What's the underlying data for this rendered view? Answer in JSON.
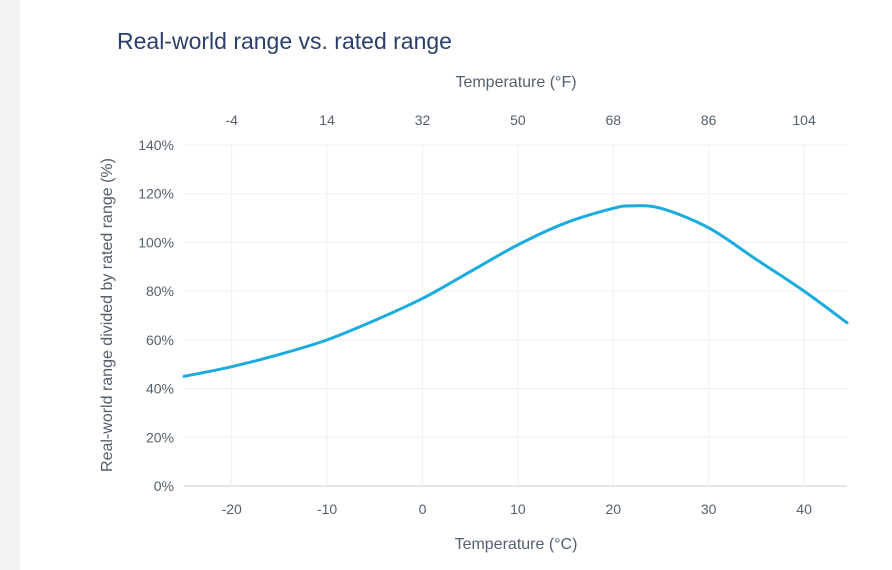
{
  "chart_data": {
    "type": "line",
    "title": "Real-world range vs. rated range",
    "xlabel": "Temperature (°C)",
    "x2label": "Temperature (°F)",
    "ylabel": "Real-world range divided by rated range (%)",
    "xlim": [
      -25,
      44.5
    ],
    "ylim": [
      0,
      140
    ],
    "xticks": [
      -20,
      -10,
      0,
      10,
      20,
      30,
      40
    ],
    "xtick_labels": [
      "-20",
      "-10",
      "0",
      "10",
      "20",
      "30",
      "40"
    ],
    "x2ticks_celsius": [
      -20,
      -10,
      0,
      10,
      20,
      30,
      40
    ],
    "x2tick_labels": [
      "-4",
      "14",
      "32",
      "50",
      "68",
      "86",
      "104"
    ],
    "yticks": [
      0,
      20,
      40,
      60,
      80,
      100,
      120,
      140
    ],
    "ytick_labels": [
      "0%",
      "20%",
      "40%",
      "60%",
      "80%",
      "100%",
      "120%",
      "140%"
    ],
    "grid": true,
    "line_color": "#1aabdf",
    "series": [
      {
        "x": [
          -25,
          -20,
          -15,
          -10,
          -5,
          0,
          5,
          10,
          15,
          20,
          22,
          25,
          30,
          35,
          40,
          44.5
        ],
        "values": [
          45,
          49,
          54,
          60,
          68,
          77,
          88,
          99,
          108,
          114,
          115,
          114,
          106,
          93,
          80,
          67
        ]
      }
    ]
  }
}
